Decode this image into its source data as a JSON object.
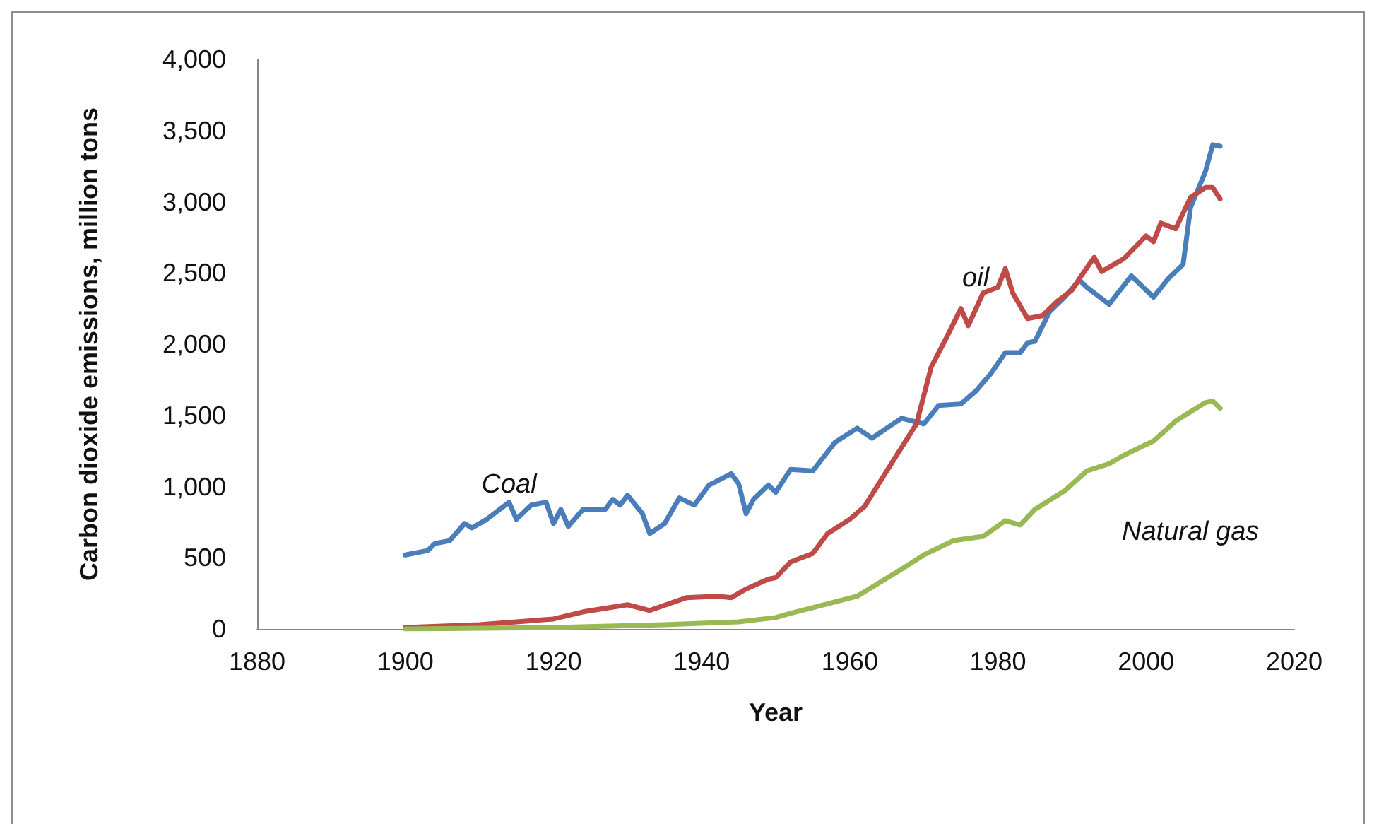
{
  "chart_data": {
    "type": "line",
    "xlabel": "Year",
    "ylabel": "Carbon dioxide emissions, million tons",
    "xlim": [
      1880,
      2020
    ],
    "xticks": [
      1880,
      1900,
      1920,
      1940,
      1960,
      1980,
      2000,
      2020
    ],
    "ylim": [
      0,
      4000
    ],
    "yticks": [
      0,
      500,
      {
        "value": 1000,
        "label": "1,000"
      },
      {
        "value": 1500,
        "label": "1,500"
      },
      {
        "value": 2000,
        "label": "2,000"
      },
      {
        "value": 2500,
        "label": "2,500"
      },
      {
        "value": 3000,
        "label": "3,000"
      },
      {
        "value": 3500,
        "label": "3,500"
      },
      {
        "value": 4000,
        "label": "4,000"
      }
    ],
    "grid": false,
    "legend": false,
    "marker": "none",
    "line_style": "solid",
    "series": [
      {
        "name": "Coal",
        "color": "#4a7ebb",
        "x": [
          1900,
          1903,
          1904,
          1906,
          1908,
          1909,
          1911,
          1912,
          1914,
          1915,
          1917,
          1919,
          1920,
          1921,
          1922,
          1924,
          1927,
          1928,
          1929,
          1930,
          1932,
          1933,
          1935,
          1937,
          1939,
          1941,
          1944,
          1945,
          1946,
          1947,
          1949,
          1950,
          1952,
          1955,
          1958,
          1961,
          1963,
          1967,
          1970,
          1972,
          1975,
          1977,
          1979,
          1981,
          1983,
          1984,
          1985,
          1987,
          1989,
          1991,
          1992,
          1995,
          1998,
          2001,
          2003,
          2004,
          2005,
          2006,
          2008,
          2009,
          2010
        ],
        "values": [
          520,
          550,
          600,
          620,
          740,
          710,
          770,
          810,
          890,
          770,
          870,
          890,
          740,
          840,
          720,
          840,
          840,
          910,
          870,
          940,
          810,
          670,
          740,
          920,
          870,
          1010,
          1090,
          1020,
          810,
          910,
          1010,
          960,
          1120,
          1110,
          1310,
          1410,
          1340,
          1480,
          1440,
          1570,
          1580,
          1670,
          1790,
          1940,
          1940,
          2010,
          2020,
          2230,
          2330,
          2450,
          2400,
          2280,
          2480,
          2330,
          2460,
          2510,
          2560,
          2960,
          3210,
          3400,
          3390
        ]
      },
      {
        "name": "oil",
        "color": "#be4b48",
        "x": [
          1900,
          1910,
          1915,
          1920,
          1924,
          1930,
          1933,
          1938,
          1942,
          1944,
          1946,
          1949,
          1950,
          1952,
          1955,
          1957,
          1960,
          1962,
          1965,
          1969,
          1971,
          1973,
          1975,
          1976,
          1978,
          1980,
          1981,
          1982,
          1984,
          1986,
          1988,
          1990,
          1991,
          1993,
          1994,
          1997,
          2000,
          2001,
          2002,
          2004,
          2006,
          2008,
          2009,
          2010
        ],
        "values": [
          10,
          30,
          50,
          70,
          120,
          170,
          130,
          220,
          230,
          220,
          280,
          350,
          360,
          470,
          530,
          670,
          770,
          860,
          1110,
          1440,
          1840,
          2040,
          2250,
          2130,
          2360,
          2400,
          2530,
          2360,
          2180,
          2200,
          2300,
          2380,
          2460,
          2610,
          2510,
          2600,
          2760,
          2720,
          2850,
          2810,
          3030,
          3100,
          3100,
          3020
        ]
      },
      {
        "name": "Natural gas",
        "color": "#98b954",
        "x": [
          1900,
          1920,
          1935,
          1945,
          1950,
          1952,
          1955,
          1961,
          1967,
          1970,
          1974,
          1978,
          1981,
          1983,
          1985,
          1989,
          1992,
          1995,
          1997,
          2001,
          2004,
          2008,
          2009,
          2010
        ],
        "values": [
          0,
          10,
          30,
          50,
          80,
          110,
          150,
          230,
          420,
          520,
          620,
          650,
          760,
          730,
          840,
          970,
          1110,
          1160,
          1220,
          1320,
          1460,
          1590,
          1600,
          1550
        ]
      }
    ]
  }
}
